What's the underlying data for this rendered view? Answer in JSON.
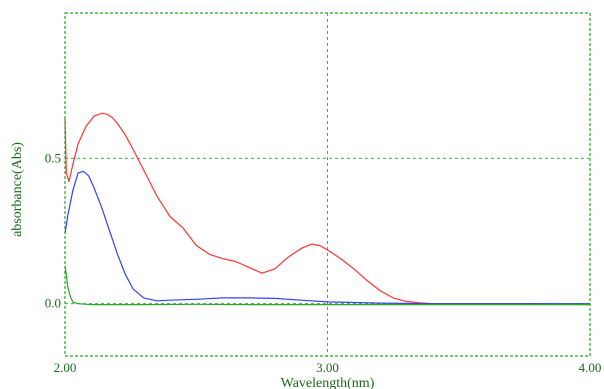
{
  "chart_data": {
    "type": "line",
    "title": "",
    "xlabel": "Wavelength(nm)",
    "ylabel": "absorbance(Abs)",
    "xlim": [
      2.0,
      4.0
    ],
    "ylim": [
      -0.18,
      1.0
    ],
    "xticks": [
      {
        "value": 2.0,
        "label": "2.00"
      },
      {
        "value": 3.0,
        "label": "3.00"
      },
      {
        "value": 4.0,
        "label": "4.00"
      }
    ],
    "yticks": [
      {
        "value": 0.0,
        "label": "0.0"
      },
      {
        "value": 0.5,
        "label": "0.5"
      }
    ],
    "grid": true,
    "legend": "none",
    "colors": {
      "frame": "#22aa22",
      "grid": "#33bb33",
      "text": "#1a6b1a"
    },
    "series": [
      {
        "color": "#ff3333",
        "x": [
          2.0,
          2.005,
          2.015,
          2.03,
          2.05,
          2.08,
          2.11,
          2.14,
          2.16,
          2.18,
          2.2,
          2.23,
          2.26,
          2.3,
          2.35,
          2.4,
          2.45,
          2.5,
          2.55,
          2.6,
          2.65,
          2.7,
          2.75,
          2.8,
          2.85,
          2.9,
          2.94,
          2.97,
          3.0,
          3.05,
          3.1,
          3.15,
          3.2,
          3.25,
          3.3,
          3.35,
          3.4,
          3.5,
          3.6,
          3.7,
          3.8,
          3.9,
          4.0
        ],
        "y": [
          0.64,
          0.45,
          0.42,
          0.48,
          0.55,
          0.61,
          0.645,
          0.655,
          0.652,
          0.64,
          0.62,
          0.58,
          0.53,
          0.46,
          0.37,
          0.3,
          0.26,
          0.2,
          0.17,
          0.155,
          0.145,
          0.125,
          0.105,
          0.12,
          0.16,
          0.19,
          0.205,
          0.2,
          0.185,
          0.155,
          0.12,
          0.08,
          0.045,
          0.02,
          0.008,
          0.003,
          0.0,
          0.0,
          0.0,
          0.0,
          0.0,
          -0.002,
          -0.003
        ]
      },
      {
        "color": "#3344ee",
        "x": [
          2.0,
          2.01,
          2.03,
          2.05,
          2.07,
          2.09,
          2.11,
          2.14,
          2.17,
          2.2,
          2.23,
          2.26,
          2.3,
          2.35,
          2.4,
          2.5,
          2.6,
          2.7,
          2.8,
          2.9,
          3.0,
          3.2,
          3.4,
          3.6,
          3.8,
          4.0
        ],
        "y": [
          0.24,
          0.3,
          0.39,
          0.45,
          0.455,
          0.44,
          0.4,
          0.33,
          0.25,
          0.17,
          0.1,
          0.05,
          0.02,
          0.01,
          0.012,
          0.015,
          0.02,
          0.02,
          0.018,
          0.012,
          0.006,
          0.002,
          0.0,
          0.0,
          0.0,
          0.0
        ]
      },
      {
        "color": "#22aa22",
        "x": [
          2.0,
          2.005,
          2.01,
          2.02,
          2.03,
          2.05,
          2.1,
          2.3,
          2.5,
          2.7,
          3.0,
          3.3,
          3.6,
          3.9,
          4.0
        ],
        "y": [
          0.13,
          0.1,
          0.06,
          0.025,
          0.005,
          0.0,
          -0.003,
          -0.003,
          -0.002,
          -0.003,
          -0.003,
          -0.003,
          -0.003,
          -0.003,
          -0.003
        ]
      }
    ]
  }
}
